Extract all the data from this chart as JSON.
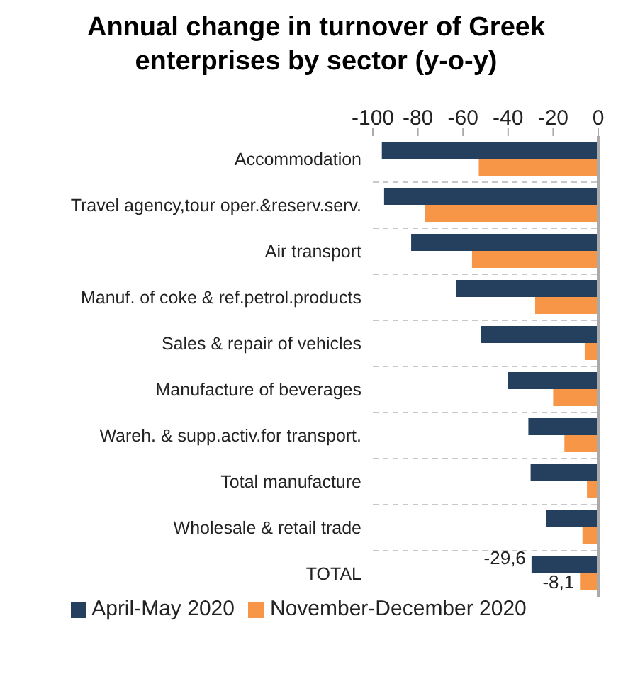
{
  "chart_data": {
    "type": "bar",
    "orientation": "horizontal",
    "title": "Annual change in turnover of Greek enterprises by sector (y-o-y)",
    "categories": [
      "Accommodation",
      "Travel agency,tour oper.&reserv.serv.",
      "Air transport",
      "Manuf. of coke & ref.petrol.products",
      "Sales & repair of vehicles",
      "Manufacture of beverages",
      "Wareh. & supp.activ.for transport.",
      "Total manufacture",
      "Wholesale & retail trade",
      "TOTAL"
    ],
    "series": [
      {
        "name": "April-May 2020",
        "color": "#253f5f",
        "values": [
          -96,
          -95,
          -83,
          -63,
          -52,
          -40,
          -31,
          -30,
          -23,
          -29.6
        ],
        "value_labels": [
          null,
          null,
          null,
          null,
          null,
          null,
          null,
          null,
          null,
          "-29,6"
        ]
      },
      {
        "name": "November-December 2020",
        "color": "#f79646",
        "values": [
          -53,
          -77,
          -56,
          -28,
          -6,
          -20,
          -15,
          -5,
          -7,
          -8.1
        ],
        "value_labels": [
          null,
          null,
          null,
          null,
          null,
          null,
          null,
          null,
          null,
          "-8,1"
        ]
      }
    ],
    "xlim": [
      -100,
      0
    ],
    "xticks": [
      -100,
      -80,
      -60,
      -40,
      -20,
      0
    ],
    "grid": "y",
    "legend": "bottom"
  }
}
